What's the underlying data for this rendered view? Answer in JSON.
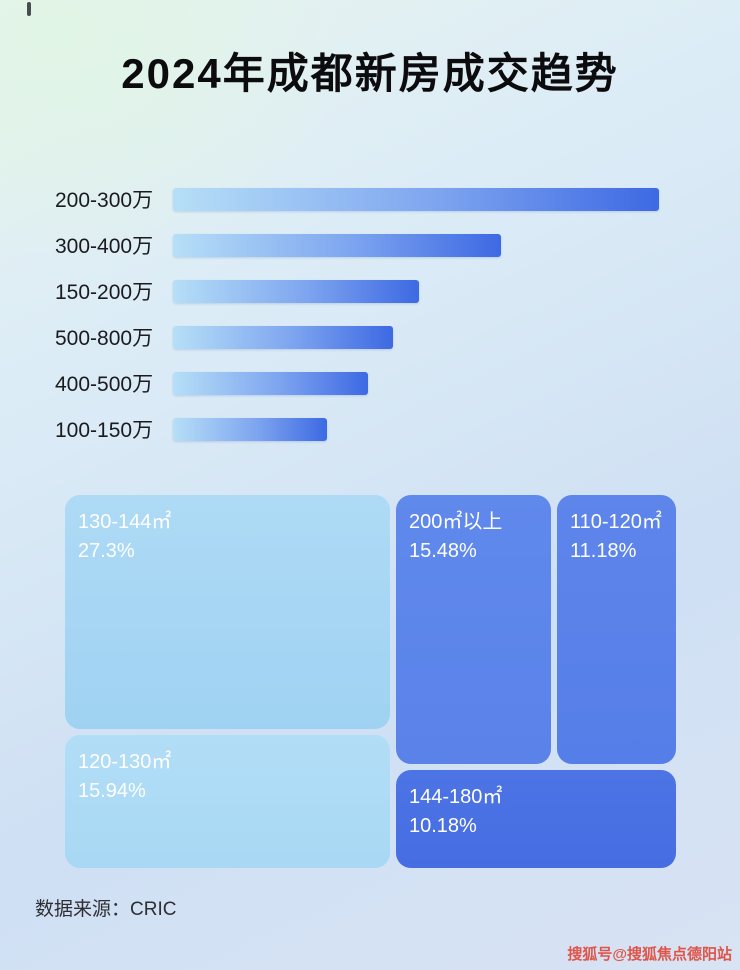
{
  "page": {
    "title": "2024年成都新房成交趋势",
    "source_label": "数据来源：CRIC",
    "watermark": "搜狐号@搜狐焦点德阳站"
  },
  "chart_data": [
    {
      "type": "bar",
      "orientation": "horizontal",
      "title": "2024年成都新房成交趋势",
      "categories": [
        "200-300万",
        "300-400万",
        "150-200万",
        "500-800万",
        "400-500万",
        "100-150万"
      ],
      "values_relative_pct": [
        95,
        64,
        48,
        43,
        38,
        30
      ],
      "value_axis_visible": false,
      "xlabel": "",
      "ylabel": "",
      "bar_gradient": [
        "#b6dff7",
        "#3d69e3"
      ],
      "note": "no numeric axis shown; values are relative bar lengths in % of track"
    },
    {
      "type": "treemap",
      "items": [
        {
          "label": "130-144㎡",
          "value_pct": 27.3,
          "value_label": "27.3%",
          "color": "#a5d7f3"
        },
        {
          "label": "200㎡以上",
          "value_pct": 15.48,
          "value_label": "15.48%",
          "color": "#5b86ea"
        },
        {
          "label": "110-120㎡",
          "value_pct": 11.18,
          "value_label": "11.18%",
          "color": "#5a80e8"
        },
        {
          "label": "120-130㎡",
          "value_pct": 15.94,
          "value_label": "15.94%",
          "color": "#acdaf5"
        },
        {
          "label": "144-180㎡",
          "value_pct": 10.18,
          "value_label": "10.18%",
          "color": "#4a71e4"
        }
      ]
    }
  ]
}
